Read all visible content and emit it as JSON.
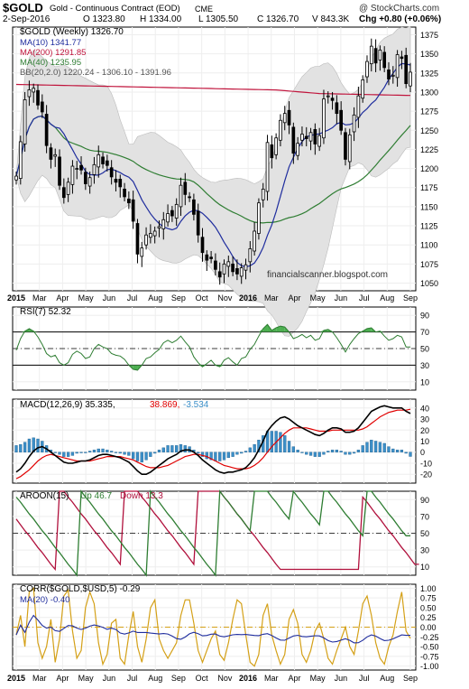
{
  "header": {
    "symbol": "$GOLD",
    "name": "Gold - Continuous Contract (EOD)",
    "exchange": "CME",
    "brand": "@ StockCharts.com",
    "date": "2-Sep-2016",
    "open": "O 1323.80",
    "high": "H 1334.00",
    "low": "L 1305.50",
    "close": "C 1326.70",
    "volume": "V 843.3K",
    "change": "Chg +0.80 (+0.06%)"
  },
  "watermark": "financialscanner.blogspot.com",
  "colors": {
    "ma10": "#1f2d9e",
    "ma200": "#c0143c",
    "ma40": "#2e7d32",
    "bb_fill": "#e2e2e2",
    "rsi_line": "#2e7d32",
    "rsi_fill": "#4caf50",
    "macd_line": "#000000",
    "signal_line": "#e00000",
    "histogram": "#3c8fc8",
    "aroon_up": "#2e7d32",
    "aroon_down": "#b0103c",
    "corr_line": "#d4a017",
    "corr_ma": "#1f2d9e",
    "dashdot": "#d4a017"
  },
  "x_labels": [
    "2015",
    "Mar",
    "Apr",
    "May",
    "Jun",
    "Jul",
    "Aug",
    "Sep",
    "Oct",
    "Nov",
    "2016",
    "Mar",
    "Apr",
    "May",
    "Jun",
    "Jul",
    "Aug",
    "Sep"
  ],
  "panels": {
    "price": {
      "legend": [
        "$GOLD (Weekly) 1326.70",
        "MA(10) 1341.77",
        "MA(200) 1291.85",
        "MA(40) 1235.95",
        "BB(20,2.0) 1220.24 - 1306.10 - 1391.96"
      ],
      "ticks": [
        "1375",
        "1350",
        "1325",
        "1300",
        "1275",
        "1250",
        "1225",
        "1200",
        "1175",
        "1150",
        "1125",
        "1100",
        "1075",
        "1050"
      ]
    },
    "rsi": {
      "legend": "RSI(7) 52.32",
      "ticks": [
        "90",
        "70",
        "50",
        "30",
        "10"
      ]
    },
    "macd": {
      "legend_a": "MACD(12,26,9) 35.335,",
      "legend_b": "38.869,",
      "legend_c": "-3.534",
      "ticks": [
        "40",
        "30",
        "20",
        "10",
        "0",
        "-10",
        "-20"
      ]
    },
    "aroon": {
      "legend_a": "AROON(15)",
      "legend_b": "Up 46.7",
      "legend_c": "Down 13.3",
      "ticks": [
        "90",
        "70",
        "50",
        "30",
        "10"
      ]
    },
    "corr": {
      "legend_a": "CORR($GOLD,$USD,5) -0.29",
      "legend_b": "MA(20) -0.40",
      "ticks": [
        "1.00",
        "0.75",
        "0.50",
        "0.25",
        "0.00",
        "-0.25",
        "-0.50",
        "-0.75",
        "-1.00"
      ]
    }
  },
  "chart_data": {
    "type": "line",
    "title": "$GOLD Gold - Continuous Contract (EOD) CME",
    "period": "weekly",
    "x_start": "2015-01-02",
    "close": [
      1190,
      1235,
      1290,
      1303,
      1305,
      1283,
      1274,
      1230,
      1212,
      1218,
      1178,
      1162,
      1182,
      1203,
      1200,
      1198,
      1180,
      1188,
      1205,
      1218,
      1206,
      1204,
      1189,
      1182,
      1176,
      1163,
      1155,
      1131,
      1088,
      1096,
      1113,
      1115,
      1118,
      1124,
      1133,
      1141,
      1138,
      1153,
      1178,
      1166,
      1162,
      1140,
      1113,
      1090,
      1080,
      1082,
      1068,
      1058,
      1075,
      1078,
      1065,
      1062,
      1070,
      1074,
      1095,
      1118,
      1155,
      1173,
      1234,
      1214,
      1240,
      1263,
      1272,
      1257,
      1220,
      1233,
      1245,
      1239,
      1247,
      1232,
      1243,
      1291,
      1295,
      1289,
      1272,
      1250,
      1212,
      1244,
      1270,
      1295,
      1316,
      1340,
      1360,
      1338,
      1355,
      1332,
      1317,
      1322,
      1349,
      1344,
      1311,
      1326
    ],
    "rsi": [
      48,
      62,
      71,
      74,
      71,
      64,
      55,
      44,
      40,
      42,
      33,
      30,
      33,
      43,
      47,
      44,
      38,
      40,
      50,
      55,
      52,
      50,
      44,
      42,
      41,
      37,
      30,
      25,
      24,
      30,
      38,
      40,
      45,
      49,
      57,
      60,
      57,
      60,
      65,
      58,
      52,
      40,
      33,
      28,
      32,
      36,
      30,
      28,
      36,
      39,
      34,
      30,
      38,
      40,
      49,
      55,
      65,
      74,
      79,
      72,
      75,
      77,
      76,
      70,
      62,
      64,
      67,
      63,
      66,
      60,
      62,
      72,
      73,
      70,
      63,
      55,
      46,
      55,
      62,
      68,
      71,
      74,
      75,
      70,
      71,
      65,
      60,
      62,
      66,
      64,
      52,
      52
    ],
    "macd": [
      -18,
      -15,
      -10,
      -4,
      1,
      4,
      5,
      3,
      0,
      -3,
      -6,
      -9,
      -10,
      -10,
      -9,
      -8,
      -8,
      -7,
      -5,
      -3,
      -2,
      -2,
      -3,
      -4,
      -5,
      -7,
      -9,
      -13,
      -17,
      -20,
      -20,
      -18,
      -15,
      -12,
      -9,
      -6,
      -4,
      -2,
      1,
      2,
      2,
      0,
      -3,
      -7,
      -10,
      -13,
      -16,
      -18,
      -19,
      -18,
      -18,
      -17,
      -16,
      -14,
      -10,
      -5,
      2,
      10,
      19,
      24,
      28,
      31,
      32,
      30,
      27,
      24,
      22,
      20,
      18,
      16,
      15,
      17,
      20,
      22,
      22,
      21,
      18,
      18,
      19,
      22,
      27,
      32,
      37,
      39,
      41,
      42,
      41,
      40,
      40,
      40,
      37,
      35
    ],
    "signal": [
      -24,
      -22,
      -19,
      -16,
      -12,
      -8,
      -5,
      -3,
      -2,
      -3,
      -4,
      -5,
      -6,
      -7,
      -8,
      -8,
      -8,
      -8,
      -7,
      -6,
      -5,
      -4,
      -4,
      -4,
      -4,
      -5,
      -6,
      -7,
      -9,
      -11,
      -13,
      -14,
      -14,
      -14,
      -13,
      -12,
      -10,
      -8,
      -6,
      -4,
      -3,
      -2,
      -2,
      -3,
      -4,
      -6,
      -8,
      -10,
      -12,
      -13,
      -14,
      -15,
      -15,
      -15,
      -14,
      -12,
      -9,
      -5,
      0,
      5,
      9,
      13,
      17,
      20,
      22,
      22,
      22,
      22,
      21,
      20,
      19,
      19,
      19,
      20,
      20,
      20,
      20,
      20,
      20,
      20,
      21,
      23,
      26,
      29,
      32,
      34,
      36,
      37,
      38,
      38,
      38,
      38.87
    ],
    "aroon_up": [
      93,
      87,
      80,
      73,
      67,
      60,
      53,
      47,
      40,
      33,
      27,
      20,
      13,
      7,
      0,
      100,
      93,
      87,
      80,
      73,
      67,
      60,
      53,
      47,
      40,
      33,
      27,
      20,
      13,
      7,
      0,
      100,
      93,
      87,
      80,
      73,
      67,
      60,
      53,
      47,
      40,
      33,
      27,
      20,
      13,
      7,
      0,
      100,
      93,
      87,
      80,
      73,
      67,
      60,
      53,
      100,
      100,
      100,
      100,
      93,
      87,
      80,
      73,
      67,
      100,
      93,
      87,
      80,
      73,
      67,
      60,
      100,
      100,
      93,
      87,
      80,
      73,
      67,
      60,
      53,
      47,
      100,
      100,
      93,
      87,
      80,
      73,
      67,
      60,
      53,
      47,
      47
    ],
    "aroon_down": [
      67,
      60,
      53,
      47,
      40,
      33,
      27,
      20,
      13,
      7,
      100,
      100,
      93,
      87,
      80,
      73,
      67,
      60,
      53,
      47,
      40,
      33,
      27,
      20,
      13,
      100,
      100,
      100,
      100,
      93,
      87,
      80,
      73,
      67,
      60,
      53,
      47,
      40,
      33,
      27,
      20,
      13,
      100,
      100,
      100,
      100,
      100,
      100,
      93,
      87,
      80,
      73,
      67,
      60,
      53,
      47,
      40,
      33,
      27,
      20,
      13,
      7,
      7,
      7,
      7,
      7,
      7,
      7,
      7,
      7,
      7,
      7,
      7,
      7,
      7,
      7,
      7,
      7,
      7,
      7,
      93,
      87,
      80,
      73,
      67,
      60,
      53,
      47,
      40,
      33,
      27,
      20,
      13,
      13
    ],
    "corr": [
      -0.2,
      0.3,
      -0.5,
      0.9,
      1.0,
      -0.4,
      -0.8,
      -0.5,
      0.2,
      -0.9,
      -0.3,
      0.8,
      0.95,
      -0.1,
      -0.8,
      -0.6,
      0.5,
      0.9,
      0.6,
      -0.4,
      -0.95,
      -0.7,
      0.1,
      0.2,
      -0.8,
      -0.95,
      -0.2,
      0.4,
      -0.5,
      -0.9,
      -0.3,
      0.5,
      0.7,
      -0.3,
      -0.6,
      -0.8,
      -0.6,
      -0.4,
      0.3,
      0.7,
      0.7,
      0.1,
      -0.6,
      -0.9,
      -0.6,
      -0.3,
      -0.1,
      -0.7,
      -0.85,
      -0.4,
      0.2,
      0.7,
      0.6,
      -0.2,
      -0.9,
      -1.0,
      -0.7,
      0.3,
      0.6,
      -0.2,
      -0.6,
      -0.95,
      -0.7,
      0.2,
      0.45,
      0.1,
      -0.7,
      -0.9,
      -0.6,
      -0.1,
      0.1,
      -0.3,
      -0.8,
      -0.95,
      -0.6,
      -0.3,
      0.0,
      -0.5,
      -0.7,
      -0.1,
      0.6,
      0.8,
      0.3,
      -0.4,
      -0.8,
      -0.95,
      -0.5,
      -0.2,
      0.4,
      0.9,
      -0.1,
      -0.29
    ],
    "ylim_price": [
      1040,
      1385
    ],
    "ylim_rsi": [
      0,
      100
    ],
    "ylim_macd": [
      -28,
      48
    ],
    "ylim_aroon": [
      0,
      100
    ],
    "ylim_corr": [
      -1.1,
      1.1
    ]
  }
}
